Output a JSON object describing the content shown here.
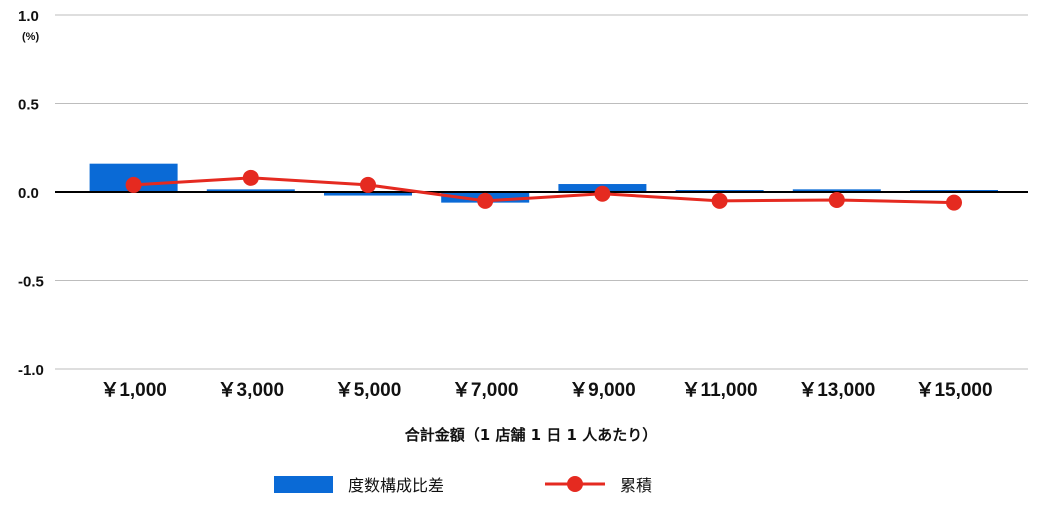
{
  "chart_data": {
    "type": "bar",
    "categories": [
      "￥1,000",
      "￥3,000",
      "￥5,000",
      "￥7,000",
      "￥9,000",
      "￥11,000",
      "￥13,000",
      "￥15,000"
    ],
    "series": [
      {
        "name": "度数構成比差",
        "type": "bar",
        "color": "#0a6ad6",
        "values": [
          0.16,
          0.015,
          -0.02,
          -0.06,
          0.045,
          0.0,
          0.015,
          0.0
        ]
      },
      {
        "name": "累積",
        "type": "line",
        "color": "#e52a20",
        "values": [
          0.04,
          0.08,
          0.04,
          -0.05,
          -0.01,
          -0.05,
          -0.045,
          -0.06
        ]
      }
    ],
    "ylim": [
      -1.0,
      1.0
    ],
    "yticks": [
      1.0,
      0.5,
      0.0,
      -0.5,
      -1.0
    ],
    "ytick_labels": [
      "1.0",
      "0.5",
      "0.0",
      "-0.5",
      "-1.0"
    ],
    "yunit": "(%)",
    "xlabel": "合計金額（1 店舗 1 日 1 人あたり）",
    "ylabel": "",
    "title": "",
    "grid": true,
    "legend_position": "bottom"
  }
}
